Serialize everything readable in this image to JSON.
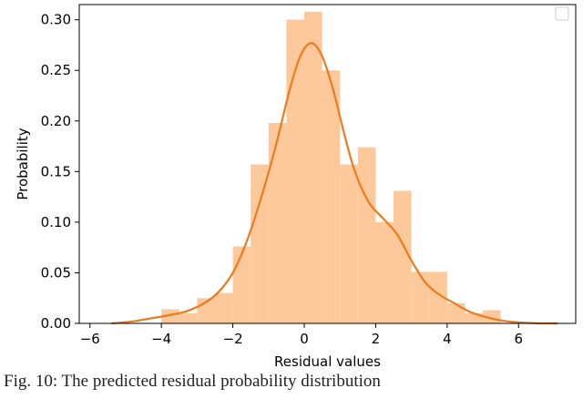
{
  "chart_data": {
    "type": "bar",
    "subtype": "histogram-with-kde",
    "xlabel": "Residual values",
    "ylabel": "Probability",
    "xlim": [
      -6.3,
      7.6
    ],
    "ylim": [
      0,
      0.315
    ],
    "xticks": [
      -6,
      -4,
      -2,
      0,
      2,
      4,
      6
    ],
    "yticks": [
      0.0,
      0.05,
      0.1,
      0.15,
      0.2,
      0.25,
      0.3
    ],
    "ytick_labels": [
      "0.00",
      "0.05",
      "0.10",
      "0.15",
      "0.20",
      "0.25",
      "0.30"
    ],
    "bins": [
      {
        "x0": -4.0,
        "x1": -3.5,
        "value": 0.014
      },
      {
        "x0": -3.5,
        "x1": -3.0,
        "value": 0.01
      },
      {
        "x0": -3.0,
        "x1": -2.5,
        "value": 0.025
      },
      {
        "x0": -2.5,
        "x1": -2.0,
        "value": 0.03
      },
      {
        "x0": -2.0,
        "x1": -1.5,
        "value": 0.076
      },
      {
        "x0": -1.5,
        "x1": -1.0,
        "value": 0.157
      },
      {
        "x0": -1.0,
        "x1": -0.5,
        "value": 0.198
      },
      {
        "x0": -0.5,
        "x1": 0.0,
        "value": 0.3
      },
      {
        "x0": 0.0,
        "x1": 0.5,
        "value": 0.308
      },
      {
        "x0": 0.5,
        "x1": 1.0,
        "value": 0.25
      },
      {
        "x0": 1.0,
        "x1": 1.5,
        "value": 0.157
      },
      {
        "x0": 1.5,
        "x1": 2.0,
        "value": 0.174
      },
      {
        "x0": 2.0,
        "x1": 2.5,
        "value": 0.1
      },
      {
        "x0": 2.5,
        "x1": 3.0,
        "value": 0.131
      },
      {
        "x0": 3.0,
        "x1": 3.5,
        "value": 0.051
      },
      {
        "x0": 3.5,
        "x1": 4.0,
        "value": 0.051
      },
      {
        "x0": 4.0,
        "x1": 4.5,
        "value": 0.02
      },
      {
        "x0": 4.5,
        "x1": 5.0,
        "value": 0.01
      },
      {
        "x0": 5.0,
        "x1": 5.5,
        "value": 0.013
      }
    ],
    "kde": {
      "x": [
        -5.4,
        -4.8,
        -4.3,
        -3.8,
        -3.3,
        -2.8,
        -2.4,
        -2.0,
        -1.6,
        -1.2,
        -0.8,
        -0.4,
        -0.1,
        0.2,
        0.5,
        0.8,
        1.1,
        1.4,
        1.8,
        2.2,
        2.6,
        3.0,
        3.4,
        3.8,
        4.2,
        4.6,
        5.0,
        5.5,
        6.0,
        6.6,
        7.1
      ],
      "y": [
        0.0,
        0.002,
        0.005,
        0.008,
        0.012,
        0.02,
        0.031,
        0.05,
        0.082,
        0.125,
        0.175,
        0.232,
        0.265,
        0.277,
        0.264,
        0.232,
        0.19,
        0.152,
        0.12,
        0.104,
        0.088,
        0.062,
        0.04,
        0.028,
        0.02,
        0.012,
        0.007,
        0.003,
        0.001,
        0.0,
        0.0
      ]
    },
    "colors": {
      "hist": "#fdc99b",
      "kde": "#ee7a1d"
    },
    "legend": {
      "location": "top-right",
      "entries": []
    },
    "grid": false
  },
  "caption": "Fig. 10: The predicted residual probability distribution"
}
